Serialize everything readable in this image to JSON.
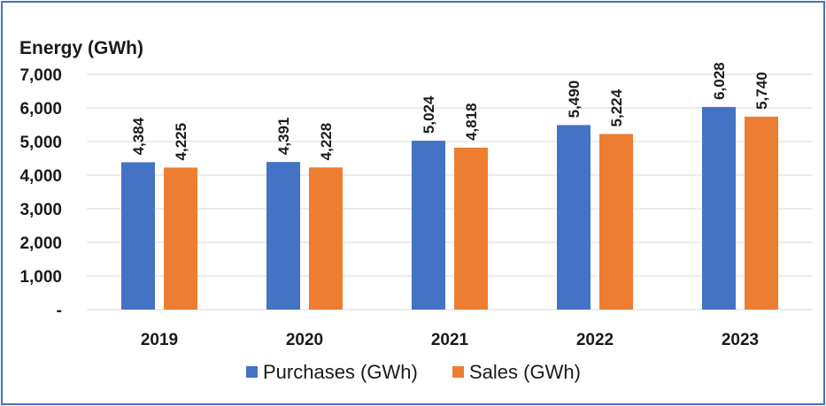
{
  "chart_data": {
    "type": "bar",
    "title": "",
    "ylabel": "Energy (GWh)",
    "xlabel": "",
    "categories": [
      "2019",
      "2020",
      "2021",
      "2022",
      "2023"
    ],
    "series": [
      {
        "name": "Purchases (GWh)",
        "color": "#4472c4",
        "values": [
          4384,
          4391,
          5024,
          5490,
          6028
        ],
        "labels": [
          "4,384",
          "4,391",
          "5,024",
          "5,490",
          "6,028"
        ]
      },
      {
        "name": "Sales (GWh)",
        "color": "#ed7d31",
        "values": [
          4225,
          4228,
          4818,
          5224,
          5740
        ],
        "labels": [
          "4,225",
          "4,228",
          "4,818",
          "5,224",
          "5,740"
        ]
      }
    ],
    "ylim": [
      0,
      7000
    ],
    "yticks": [
      0,
      1000,
      2000,
      3000,
      4000,
      5000,
      6000,
      7000
    ],
    "ytick_labels": [
      "-",
      "1,000",
      "2,000",
      "3,000",
      "4,000",
      "5,000",
      "6,000",
      "7,000"
    ],
    "grid": true,
    "legend": "bottom",
    "border_color": "#4472c4",
    "grid_color": "#d9d9d9"
  }
}
